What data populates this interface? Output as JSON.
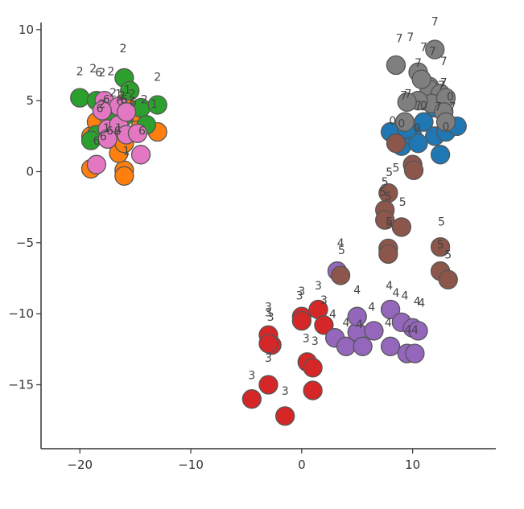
{
  "chart_data": {
    "type": "scatter",
    "title": "",
    "xlabel": "",
    "ylabel": "",
    "xlim": [
      -23.5,
      17.5
    ],
    "ylim": [
      -19.5,
      10.5
    ],
    "xticks": [
      -20,
      -10,
      0,
      10
    ],
    "yticks": [
      10,
      5,
      0,
      -5,
      -10,
      -15
    ],
    "grid": false,
    "legend": "none",
    "series": [
      {
        "class": "0",
        "color": "#1f77b4",
        "points": [
          [
            8,
            2.8
          ],
          [
            9,
            1.8
          ],
          [
            10,
            2.5
          ],
          [
            11,
            3.5
          ],
          [
            12,
            2.5
          ],
          [
            12.5,
            1.2
          ],
          [
            13,
            2.8
          ],
          [
            14,
            3.2
          ],
          [
            12,
            4.5
          ],
          [
            11,
            5
          ],
          [
            10.5,
            2
          ],
          [
            9.5,
            3
          ]
        ],
        "labels": [
          [
            8.2,
            3.3
          ],
          [
            9,
            3.1
          ],
          [
            11,
            4.4
          ],
          [
            13,
            2.9
          ],
          [
            13.4,
            5
          ],
          [
            10.4,
            2.8
          ]
        ]
      },
      {
        "class": "1",
        "color": "#ff7f0e",
        "points": [
          [
            -19,
            0.2
          ],
          [
            -16,
            0.1
          ],
          [
            -16.5,
            1.3
          ],
          [
            -19,
            2.5
          ],
          [
            -17,
            3
          ],
          [
            -14.5,
            3.2
          ],
          [
            -13,
            2.8
          ],
          [
            -18.5,
            3.5
          ],
          [
            -16,
            4.8
          ],
          [
            -15,
            4.2
          ],
          [
            -16,
            2
          ],
          [
            -17.5,
            4
          ],
          [
            -16,
            -0.3
          ]
        ],
        "labels": [
          [
            -15.8,
            1.2
          ],
          [
            -17.6,
            2.8
          ],
          [
            -16.5,
            2.8
          ],
          [
            -13.3,
            4.5
          ],
          [
            -15.7,
            5.5
          ],
          [
            -16.5,
            5.2
          ]
        ]
      },
      {
        "class": "2",
        "color": "#2ca02c",
        "points": [
          [
            -20,
            5.2
          ],
          [
            -18.5,
            5
          ],
          [
            -16,
            6.6
          ],
          [
            -15.5,
            5.7
          ],
          [
            -14.5,
            4.5
          ],
          [
            -13,
            4.7
          ],
          [
            -17,
            4
          ],
          [
            -16,
            3.9
          ],
          [
            -14,
            3.3
          ],
          [
            -18.5,
            2.6
          ],
          [
            -19,
            2.2
          ],
          [
            -17.8,
            4.5
          ]
        ],
        "labels": [
          [
            -20,
            6.8
          ],
          [
            -18.8,
            7
          ],
          [
            -18,
            6.7
          ],
          [
            -17.2,
            6.8
          ],
          [
            -16.1,
            8.4
          ],
          [
            -13,
            6.4
          ],
          [
            -14.2,
            4.8
          ],
          [
            -17,
            5.3
          ],
          [
            -16.2,
            5.1
          ],
          [
            -15.3,
            5.2
          ],
          [
            -18,
            4.5
          ]
        ]
      },
      {
        "class": "3",
        "color": "#d62728",
        "points": [
          [
            -4.5,
            -16
          ],
          [
            -3,
            -15
          ],
          [
            -1.5,
            -17.2
          ],
          [
            -3,
            -11.5
          ],
          [
            -2.7,
            -12.2
          ],
          [
            -3,
            -12.1
          ],
          [
            0,
            -10.2
          ],
          [
            0,
            -10.5
          ],
          [
            1.5,
            -9.7
          ],
          [
            2,
            -10.8
          ],
          [
            0.5,
            -13.4
          ],
          [
            1,
            -13.8
          ],
          [
            1,
            -15.4
          ]
        ],
        "labels": [
          [
            -4.5,
            -14.6
          ],
          [
            -3,
            -13.4
          ],
          [
            -1.5,
            -15.7
          ],
          [
            -3,
            -9.8
          ],
          [
            -3,
            -10.2
          ],
          [
            -2.8,
            -10.5
          ],
          [
            0,
            -8.7
          ],
          [
            -0.2,
            -9
          ],
          [
            1.5,
            -8.3
          ],
          [
            2,
            -9.3
          ],
          [
            0.4,
            -12
          ],
          [
            1.2,
            -12.2
          ]
        ]
      },
      {
        "class": "4",
        "color": "#9467bd",
        "points": [
          [
            3.2,
            -7
          ],
          [
            3,
            -11.7
          ],
          [
            4,
            -12.3
          ],
          [
            5,
            -11.3
          ],
          [
            5.5,
            -12.3
          ],
          [
            5,
            -10.2
          ],
          [
            6.5,
            -11.2
          ],
          [
            8,
            -9.7
          ],
          [
            8,
            -12.3
          ],
          [
            9,
            -10.6
          ],
          [
            10,
            -11
          ],
          [
            10.5,
            -11.2
          ],
          [
            9.5,
            -12.8
          ],
          [
            10.2,
            -12.8
          ]
        ],
        "labels": [
          [
            3.5,
            -5.3
          ],
          [
            2.8,
            -10.3
          ],
          [
            4,
            -10.9
          ],
          [
            5,
            -8.6
          ],
          [
            5.2,
            -11
          ],
          [
            6.3,
            -9.8
          ],
          [
            7.9,
            -8.3
          ],
          [
            8.5,
            -8.8
          ],
          [
            9.3,
            -9
          ],
          [
            10.4,
            -9.4
          ],
          [
            10.8,
            -9.5
          ],
          [
            7.8,
            -10.9
          ],
          [
            9.6,
            -11.4
          ],
          [
            10.2,
            -11.4
          ]
        ]
      },
      {
        "class": "5",
        "color": "#8c564b",
        "points": [
          [
            8.5,
            2
          ],
          [
            10,
            0.5
          ],
          [
            7.8,
            -1.5
          ],
          [
            7.5,
            -2.7
          ],
          [
            7.5,
            -3.4
          ],
          [
            9,
            -3.9
          ],
          [
            7.8,
            -5.4
          ],
          [
            7.8,
            -5.8
          ],
          [
            12.5,
            -5.3
          ],
          [
            12.5,
            -7
          ],
          [
            13.2,
            -7.6
          ],
          [
            3.5,
            -7.3
          ],
          [
            10.1,
            0.1
          ]
        ],
        "labels": [
          [
            8.5,
            0
          ],
          [
            7.9,
            -0.3
          ],
          [
            7.5,
            -1
          ],
          [
            7.3,
            -1.7
          ],
          [
            7.8,
            -2
          ],
          [
            9.1,
            -2.4
          ],
          [
            7.9,
            -3.8
          ],
          [
            7.9,
            -4
          ],
          [
            12.6,
            -3.8
          ],
          [
            12.5,
            -5.4
          ],
          [
            13.2,
            -6.1
          ],
          [
            3.6,
            -5.8
          ]
        ]
      },
      {
        "class": "6",
        "color": "#e377c2",
        "points": [
          [
            -18.5,
            0.5
          ],
          [
            -14.5,
            1.2
          ],
          [
            -17.5,
            3
          ],
          [
            -16.5,
            3.3
          ],
          [
            -15.8,
            2.6
          ],
          [
            -14.8,
            2.7
          ],
          [
            -17.8,
            5
          ],
          [
            -16.5,
            4.6
          ],
          [
            -17.5,
            2.3
          ],
          [
            -15.8,
            4.2
          ],
          [
            -18,
            4.3
          ]
        ],
        "labels": [
          [
            -18.5,
            1.9
          ],
          [
            -17.9,
            2.2
          ],
          [
            -17.3,
            2.6
          ],
          [
            -16.6,
            2.6
          ],
          [
            -14.4,
            2.6
          ],
          [
            -18.3,
            6.7
          ],
          [
            -17.6,
            4.8
          ],
          [
            -16.4,
            4.7
          ],
          [
            -16,
            4.8
          ],
          [
            -15.2,
            4.6
          ],
          [
            -18.2,
            4.2
          ]
        ]
      },
      {
        "class": "7",
        "color": "#7f7f7f",
        "points": [
          [
            8.5,
            7.5
          ],
          [
            11.5,
            6
          ],
          [
            12,
            8.6
          ],
          [
            10.5,
            7
          ],
          [
            11.5,
            5.8
          ],
          [
            12.5,
            5.5
          ],
          [
            11.7,
            4.8
          ],
          [
            10.5,
            5
          ],
          [
            9.5,
            4.9
          ],
          [
            13,
            5.2
          ],
          [
            12.8,
            4.2
          ],
          [
            13,
            3.5
          ],
          [
            9.3,
            3.5
          ],
          [
            10.8,
            6.5
          ]
        ],
        "labels": [
          [
            8.8,
            9.1
          ],
          [
            9.8,
            9.2
          ],
          [
            12,
            10.3
          ],
          [
            11,
            8.5
          ],
          [
            10.5,
            7.4
          ],
          [
            12.8,
            7.5
          ],
          [
            12.6,
            5.8
          ],
          [
            12.8,
            6
          ],
          [
            11.8,
            8.2
          ],
          [
            9.6,
            5.2
          ],
          [
            9.2,
            5.1
          ],
          [
            10.5,
            4.4
          ],
          [
            12.3,
            4.3
          ],
          [
            13.6,
            4.3
          ]
        ]
      }
    ]
  }
}
